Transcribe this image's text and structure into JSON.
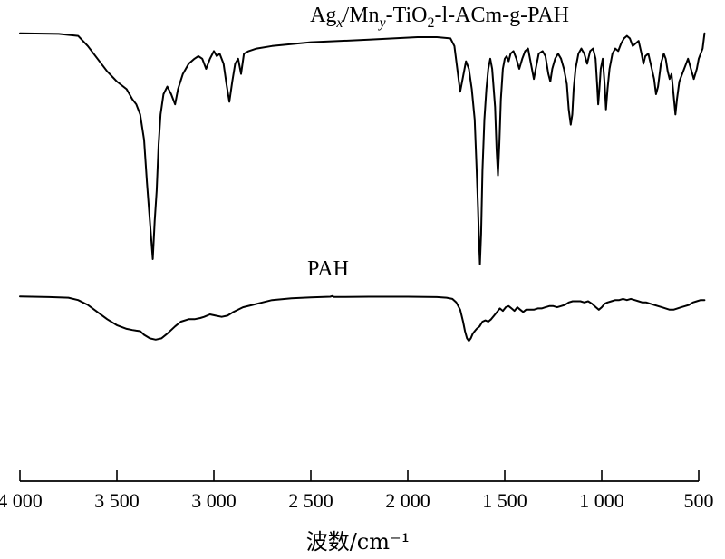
{
  "chart_data": {
    "type": "line",
    "title": "",
    "xlabel": "波数/cm⁻¹",
    "ylabel": "",
    "xlim": [
      4000,
      500
    ],
    "x_reversed": true,
    "x_ticks": [
      4000,
      3500,
      3000,
      2500,
      2000,
      1500,
      1000,
      500
    ],
    "x_tick_labels": [
      "4 000",
      "3 500",
      "3 000",
      "2 500",
      "2 000",
      "1 500",
      "1 000",
      "500"
    ],
    "grid": false,
    "legend": "none",
    "ylim": [
      0,
      100
    ],
    "series": [
      {
        "name": "Agx/Mny-TiO2-l-ACm-g-PAH",
        "label_parts": [
          "Ag",
          "x",
          "/Mn",
          "y",
          "-TiO",
          "2",
          "-l-ACm-g-PAH"
        ],
        "points": [
          [
            4000,
            94
          ],
          [
            3800,
            93.8
          ],
          [
            3700,
            93
          ],
          [
            3650,
            89
          ],
          [
            3600,
            84
          ],
          [
            3550,
            79
          ],
          [
            3500,
            75
          ],
          [
            3450,
            72
          ],
          [
            3420,
            68
          ],
          [
            3400,
            66
          ],
          [
            3380,
            62
          ],
          [
            3360,
            52
          ],
          [
            3345,
            35
          ],
          [
            3330,
            20
          ],
          [
            3315,
            5
          ],
          [
            3305,
            20
          ],
          [
            3295,
            32
          ],
          [
            3285,
            50
          ],
          [
            3275,
            62
          ],
          [
            3260,
            70
          ],
          [
            3240,
            73
          ],
          [
            3220,
            70
          ],
          [
            3200,
            66
          ],
          [
            3185,
            72
          ],
          [
            3160,
            78
          ],
          [
            3130,
            82
          ],
          [
            3100,
            84
          ],
          [
            3080,
            85
          ],
          [
            3060,
            84
          ],
          [
            3040,
            80
          ],
          [
            3020,
            84
          ],
          [
            3000,
            87
          ],
          [
            2985,
            85
          ],
          [
            2970,
            86
          ],
          [
            2950,
            82
          ],
          [
            2935,
            74
          ],
          [
            2920,
            67
          ],
          [
            2905,
            75
          ],
          [
            2890,
            82
          ],
          [
            2875,
            84
          ],
          [
            2860,
            78
          ],
          [
            2845,
            86
          ],
          [
            2820,
            87
          ],
          [
            2780,
            88
          ],
          [
            2700,
            89
          ],
          [
            2500,
            90.5
          ],
          [
            2200,
            91.5
          ],
          [
            1950,
            92.5
          ],
          [
            1850,
            92.5
          ],
          [
            1780,
            92
          ],
          [
            1760,
            89
          ],
          [
            1745,
            80
          ],
          [
            1730,
            71
          ],
          [
            1715,
            77
          ],
          [
            1700,
            83
          ],
          [
            1685,
            80
          ],
          [
            1670,
            72
          ],
          [
            1655,
            60
          ],
          [
            1645,
            40
          ],
          [
            1638,
            25
          ],
          [
            1632,
            10
          ],
          [
            1628,
            3
          ],
          [
            1622,
            15
          ],
          [
            1615,
            40
          ],
          [
            1605,
            60
          ],
          [
            1595,
            72
          ],
          [
            1585,
            80
          ],
          [
            1575,
            84
          ],
          [
            1565,
            80
          ],
          [
            1550,
            65
          ],
          [
            1542,
            48
          ],
          [
            1535,
            38
          ],
          [
            1528,
            50
          ],
          [
            1520,
            68
          ],
          [
            1510,
            80
          ],
          [
            1500,
            84
          ],
          [
            1490,
            85
          ],
          [
            1480,
            83
          ],
          [
            1470,
            86
          ],
          [
            1455,
            87
          ],
          [
            1440,
            84
          ],
          [
            1425,
            80
          ],
          [
            1410,
            84
          ],
          [
            1395,
            87
          ],
          [
            1380,
            88
          ],
          [
            1365,
            82
          ],
          [
            1350,
            76
          ],
          [
            1340,
            80
          ],
          [
            1325,
            86
          ],
          [
            1305,
            87
          ],
          [
            1290,
            85
          ],
          [
            1275,
            78
          ],
          [
            1265,
            75
          ],
          [
            1255,
            80
          ],
          [
            1240,
            84
          ],
          [
            1225,
            86
          ],
          [
            1210,
            84
          ],
          [
            1195,
            80
          ],
          [
            1180,
            74
          ],
          [
            1170,
            64
          ],
          [
            1160,
            58
          ],
          [
            1152,
            62
          ],
          [
            1145,
            72
          ],
          [
            1135,
            80
          ],
          [
            1120,
            86
          ],
          [
            1105,
            88
          ],
          [
            1090,
            86
          ],
          [
            1075,
            82
          ],
          [
            1060,
            87
          ],
          [
            1045,
            88
          ],
          [
            1032,
            84
          ],
          [
            1024,
            74
          ],
          [
            1018,
            66
          ],
          [
            1012,
            72
          ],
          [
            1005,
            80
          ],
          [
            995,
            84
          ],
          [
            985,
            74
          ],
          [
            978,
            64
          ],
          [
            970,
            72
          ],
          [
            960,
            80
          ],
          [
            945,
            86
          ],
          [
            930,
            88
          ],
          [
            915,
            87
          ],
          [
            900,
            90
          ],
          [
            885,
            92
          ],
          [
            870,
            93
          ],
          [
            855,
            92
          ],
          [
            840,
            89
          ],
          [
            825,
            90
          ],
          [
            810,
            91
          ],
          [
            795,
            86
          ],
          [
            785,
            82
          ],
          [
            775,
            85
          ],
          [
            760,
            86
          ],
          [
            745,
            81
          ],
          [
            730,
            76
          ],
          [
            720,
            70
          ],
          [
            710,
            73
          ],
          [
            695,
            82
          ],
          [
            680,
            86
          ],
          [
            670,
            84
          ],
          [
            660,
            79
          ],
          [
            650,
            76
          ],
          [
            640,
            78
          ],
          [
            630,
            70
          ],
          [
            620,
            62
          ],
          [
            612,
            68
          ],
          [
            600,
            75
          ],
          [
            585,
            78
          ],
          [
            570,
            81
          ],
          [
            555,
            84
          ],
          [
            540,
            80
          ],
          [
            525,
            76
          ],
          [
            510,
            80
          ],
          [
            500,
            84
          ],
          [
            480,
            88
          ],
          [
            470,
            94
          ]
        ]
      },
      {
        "name": "PAH",
        "label_parts": [
          "PAH"
        ],
        "points": [
          [
            4000,
            93
          ],
          [
            3850,
            92.5
          ],
          [
            3750,
            92
          ],
          [
            3700,
            90
          ],
          [
            3650,
            86
          ],
          [
            3600,
            80
          ],
          [
            3550,
            74
          ],
          [
            3500,
            69
          ],
          [
            3450,
            66
          ],
          [
            3420,
            65
          ],
          [
            3400,
            64.5
          ],
          [
            3380,
            64
          ],
          [
            3360,
            61
          ],
          [
            3330,
            58
          ],
          [
            3300,
            57
          ],
          [
            3270,
            58
          ],
          [
            3240,
            62
          ],
          [
            3200,
            68
          ],
          [
            3170,
            72
          ],
          [
            3130,
            74
          ],
          [
            3100,
            74
          ],
          [
            3070,
            75
          ],
          [
            3050,
            76
          ],
          [
            3020,
            78
          ],
          [
            2990,
            77
          ],
          [
            2960,
            76
          ],
          [
            2930,
            77
          ],
          [
            2900,
            80
          ],
          [
            2850,
            84
          ],
          [
            2800,
            86
          ],
          [
            2750,
            88
          ],
          [
            2700,
            90
          ],
          [
            2600,
            91.5
          ],
          [
            2500,
            92.3
          ],
          [
            2400,
            92.8
          ],
          [
            2390,
            93.3
          ],
          [
            2380,
            92.6
          ],
          [
            2200,
            92.8
          ],
          [
            2000,
            92.8
          ],
          [
            1850,
            92.5
          ],
          [
            1800,
            92
          ],
          [
            1770,
            91
          ],
          [
            1750,
            88
          ],
          [
            1730,
            82
          ],
          [
            1715,
            72
          ],
          [
            1705,
            64
          ],
          [
            1695,
            58
          ],
          [
            1685,
            56
          ],
          [
            1675,
            58
          ],
          [
            1665,
            62
          ],
          [
            1655,
            64
          ],
          [
            1645,
            66
          ],
          [
            1630,
            68
          ],
          [
            1615,
            72
          ],
          [
            1600,
            73
          ],
          [
            1585,
            72
          ],
          [
            1570,
            74
          ],
          [
            1555,
            77
          ],
          [
            1540,
            80
          ],
          [
            1525,
            83
          ],
          [
            1510,
            81
          ],
          [
            1495,
            84
          ],
          [
            1480,
            85
          ],
          [
            1465,
            83
          ],
          [
            1450,
            81
          ],
          [
            1435,
            84
          ],
          [
            1420,
            82
          ],
          [
            1405,
            80
          ],
          [
            1390,
            82
          ],
          [
            1370,
            82
          ],
          [
            1350,
            82
          ],
          [
            1330,
            83
          ],
          [
            1310,
            83
          ],
          [
            1290,
            84
          ],
          [
            1270,
            85
          ],
          [
            1250,
            85
          ],
          [
            1230,
            84
          ],
          [
            1210,
            85
          ],
          [
            1190,
            86
          ],
          [
            1170,
            88
          ],
          [
            1150,
            89
          ],
          [
            1130,
            89
          ],
          [
            1110,
            89
          ],
          [
            1090,
            88
          ],
          [
            1070,
            89
          ],
          [
            1050,
            87
          ],
          [
            1030,
            84
          ],
          [
            1015,
            82
          ],
          [
            1000,
            84
          ],
          [
            985,
            87
          ],
          [
            970,
            88
          ],
          [
            950,
            89
          ],
          [
            930,
            90
          ],
          [
            910,
            90
          ],
          [
            890,
            91
          ],
          [
            870,
            90
          ],
          [
            850,
            91
          ],
          [
            830,
            90
          ],
          [
            810,
            89
          ],
          [
            790,
            88
          ],
          [
            770,
            88
          ],
          [
            750,
            87
          ],
          [
            730,
            86
          ],
          [
            710,
            85
          ],
          [
            690,
            84
          ],
          [
            670,
            83
          ],
          [
            650,
            82
          ],
          [
            630,
            82
          ],
          [
            610,
            83
          ],
          [
            590,
            84
          ],
          [
            570,
            85
          ],
          [
            550,
            86
          ],
          [
            530,
            88
          ],
          [
            510,
            89
          ],
          [
            490,
            90
          ],
          [
            470,
            90
          ]
        ]
      }
    ]
  }
}
